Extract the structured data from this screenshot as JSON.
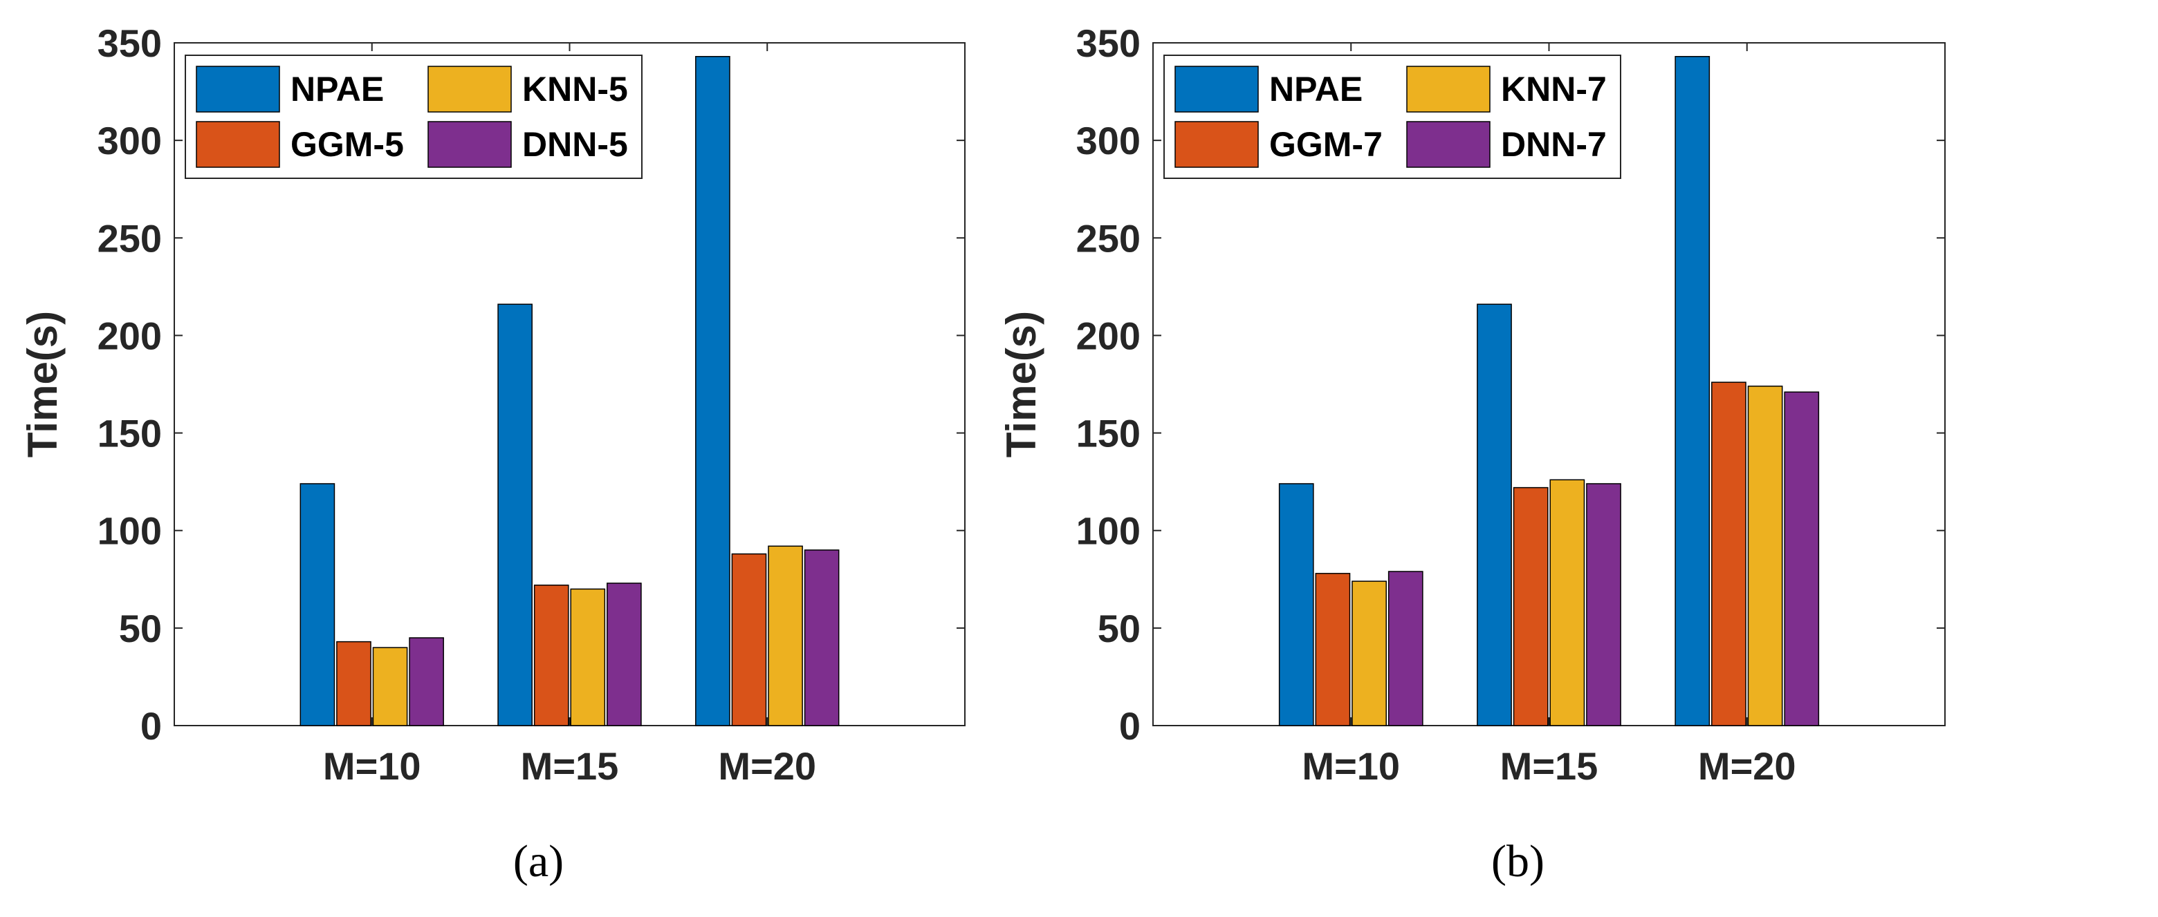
{
  "colors": {
    "NPAE": "#0072BD",
    "GGM": "#D95319",
    "KNN": "#EDB120",
    "DNN": "#7E2F8E",
    "axis": "#262626"
  },
  "chart_data": [
    {
      "type": "bar",
      "caption": "(a)",
      "categories": [
        "M=10",
        "M=15",
        "M=20"
      ],
      "ylabel": "Time(s)",
      "xlabel": "",
      "ylim": [
        0,
        350
      ],
      "yticks": [
        0,
        50,
        100,
        150,
        200,
        250,
        300,
        350
      ],
      "legend_position": "top-left",
      "series": [
        {
          "name": "NPAE",
          "color_key": "NPAE",
          "values": [
            124,
            216,
            343
          ]
        },
        {
          "name": "GGM-5",
          "color_key": "GGM",
          "values": [
            43,
            72,
            88
          ]
        },
        {
          "name": "KNN-5",
          "color_key": "KNN",
          "values": [
            40,
            70,
            92
          ]
        },
        {
          "name": "DNN-5",
          "color_key": "DNN",
          "values": [
            45,
            73,
            90
          ]
        }
      ]
    },
    {
      "type": "bar",
      "caption": "(b)",
      "categories": [
        "M=10",
        "M=15",
        "M=20"
      ],
      "ylabel": "Time(s)",
      "xlabel": "",
      "ylim": [
        0,
        350
      ],
      "yticks": [
        0,
        50,
        100,
        150,
        200,
        250,
        300,
        350
      ],
      "legend_position": "top-left",
      "series": [
        {
          "name": "NPAE",
          "color_key": "NPAE",
          "values": [
            124,
            216,
            343
          ]
        },
        {
          "name": "GGM-7",
          "color_key": "GGM",
          "values": [
            78,
            122,
            176
          ]
        },
        {
          "name": "KNN-7",
          "color_key": "KNN",
          "values": [
            74,
            126,
            174
          ]
        },
        {
          "name": "DNN-7",
          "color_key": "DNN",
          "values": [
            79,
            124,
            171
          ]
        }
      ]
    }
  ]
}
